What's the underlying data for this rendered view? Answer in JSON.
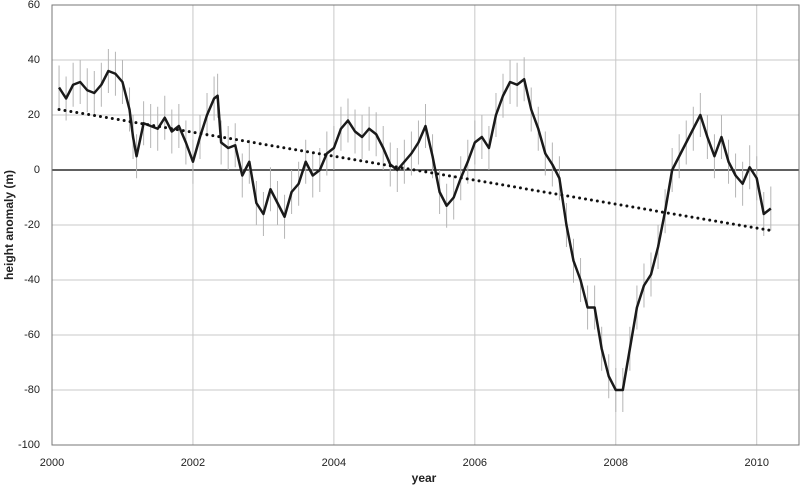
{
  "chart_data": {
    "type": "line",
    "x_label": "year",
    "y_label": "height anomaly (m)",
    "xlim": [
      2000,
      2010.6
    ],
    "ylim": [
      -100,
      60
    ],
    "xticks": [
      2000,
      2002,
      2004,
      2006,
      2008,
      2010
    ],
    "yticks": [
      -100,
      -80,
      -60,
      -40,
      -20,
      0,
      20,
      40,
      60
    ],
    "grid": true,
    "series": [
      {
        "style": "solid",
        "color": "#1a1a1a",
        "error_color": "#b5b5b5",
        "error": 8,
        "x": [
          2000.1,
          2000.2,
          2000.3,
          2000.4,
          2000.5,
          2000.6,
          2000.7,
          2000.8,
          2000.9,
          2001.0,
          2001.1,
          2001.15,
          2001.2,
          2001.3,
          2001.4,
          2001.5,
          2001.6,
          2001.7,
          2001.8,
          2001.9,
          2002.0,
          2002.1,
          2002.2,
          2002.3,
          2002.35,
          2002.4,
          2002.5,
          2002.6,
          2002.7,
          2002.8,
          2002.9,
          2003.0,
          2003.1,
          2003.2,
          2003.3,
          2003.4,
          2003.5,
          2003.6,
          2003.7,
          2003.8,
          2003.9,
          2004.0,
          2004.1,
          2004.2,
          2004.3,
          2004.4,
          2004.5,
          2004.6,
          2004.7,
          2004.8,
          2004.9,
          2005.0,
          2005.1,
          2005.2,
          2005.3,
          2005.4,
          2005.5,
          2005.6,
          2005.7,
          2005.8,
          2005.9,
          2006.0,
          2006.1,
          2006.2,
          2006.3,
          2006.4,
          2006.5,
          2006.6,
          2006.7,
          2006.8,
          2006.9,
          2007.0,
          2007.1,
          2007.2,
          2007.3,
          2007.4,
          2007.5,
          2007.6,
          2007.7,
          2007.8,
          2007.9,
          2008.0,
          2008.1,
          2008.2,
          2008.3,
          2008.4,
          2008.5,
          2008.6,
          2008.7,
          2008.8,
          2008.9,
          2009.0,
          2009.1,
          2009.2,
          2009.3,
          2009.4,
          2009.5,
          2009.6,
          2009.7,
          2009.8,
          2009.9,
          2010.0,
          2010.1,
          2010.2
        ],
        "values": [
          30,
          26,
          31,
          32,
          29,
          28,
          31,
          36,
          35,
          32,
          22,
          12,
          5,
          17,
          16,
          15,
          19,
          14,
          16,
          10,
          3,
          12,
          20,
          26,
          27,
          10,
          8,
          9,
          -2,
          3,
          -12,
          -16,
          -7,
          -12,
          -17,
          -8,
          -5,
          3,
          -2,
          0,
          6,
          8,
          15,
          18,
          14,
          12,
          15,
          13,
          8,
          2,
          0,
          3,
          6,
          10,
          16,
          5,
          -8,
          -13,
          -10,
          -3,
          3,
          10,
          12,
          8,
          20,
          27,
          32,
          31,
          33,
          22,
          15,
          6,
          2,
          -3,
          -20,
          -33,
          -40,
          -50,
          -50,
          -65,
          -75,
          -80,
          -80,
          -65,
          -50,
          -42,
          -38,
          -28,
          -15,
          0,
          5,
          10,
          15,
          20,
          12,
          5,
          12,
          3,
          -2,
          -5,
          1,
          -3,
          -16,
          -14
        ]
      },
      {
        "style": "dotted",
        "color": "#111111",
        "x": [
          2000.1,
          2010.2
        ],
        "values": [
          22,
          -22
        ]
      }
    ]
  }
}
